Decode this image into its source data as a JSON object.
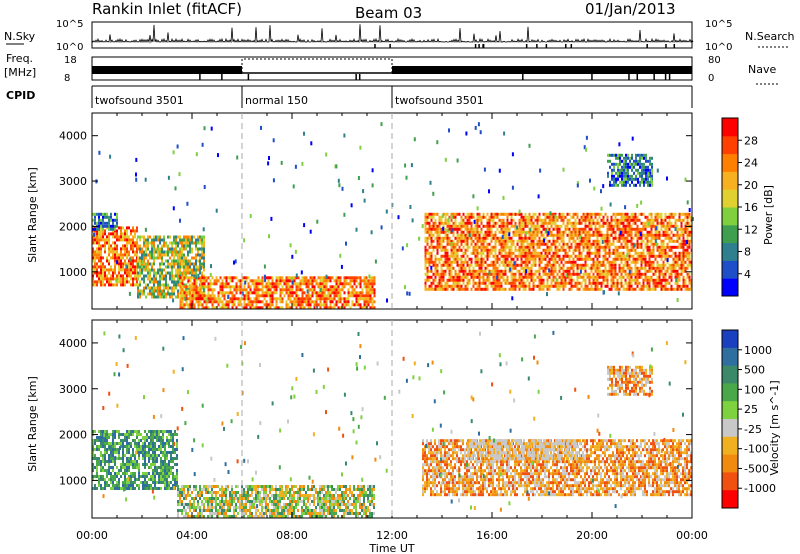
{
  "header": {
    "station": "Rankin Inlet (fitACF)",
    "beam": "Beam 03",
    "date": "01/Jan/2013"
  },
  "params": {
    "nsky_label": "N.Sky",
    "nsky_ticks": [
      "10^5",
      "10^0"
    ],
    "nsearch_label": "N.Search",
    "nsearch_ticks": [
      "10^5",
      "10^0"
    ],
    "freq_label": "Freq.",
    "freq_unit": "[MHz]",
    "freq_ticks": [
      "18",
      "8"
    ],
    "nave_label": "Nave",
    "nave_ticks": [
      "80",
      "0"
    ],
    "cpid_label": "CPID",
    "cpid_segments": [
      {
        "label": "twofsound 3501",
        "start_hour": 0,
        "end_hour": 6
      },
      {
        "label": "normal 150",
        "start_hour": 6,
        "end_hour": 12
      },
      {
        "label": "twofsound 3501",
        "start_hour": 12,
        "end_hour": 24
      }
    ]
  },
  "chart_data": [
    {
      "type": "heatmap",
      "quantity": "power",
      "ylabel": "Slant Range [km]",
      "yticks": [
        1000,
        2000,
        3000,
        4000
      ],
      "ylim": [
        180,
        4500
      ],
      "xlim": [
        0,
        24
      ],
      "xticks": [
        "00:00",
        "04:00",
        "08:00",
        "12:00",
        "16:00",
        "20:00",
        "00:00"
      ],
      "colorbar": {
        "label": "Power [dB]",
        "ticks": [
          "4",
          "8",
          "12",
          "16",
          "20",
          "24",
          "28"
        ],
        "colors": [
          "#0000ff",
          "#1f4fc8",
          "#2f7f8f",
          "#3f9f4f",
          "#7fcf3f",
          "#e0d030",
          "#f7b020",
          "#ff8000",
          "#ff4000",
          "#ff0000"
        ]
      },
      "echo_regions": [
        {
          "t0": 0.0,
          "t1": 1.8,
          "r0": 700,
          "r1": 2000,
          "level": "high"
        },
        {
          "t0": 1.8,
          "t1": 4.5,
          "r0": 450,
          "r1": 1800,
          "level": "mid"
        },
        {
          "t0": 3.5,
          "t1": 11.3,
          "r0": 200,
          "r1": 900,
          "level": "high"
        },
        {
          "t0": 13.3,
          "t1": 24.0,
          "r0": 600,
          "r1": 2300,
          "level": "high"
        },
        {
          "t0": 0.0,
          "t1": 1.0,
          "r0": 1950,
          "r1": 2300,
          "level": "low"
        },
        {
          "t0": 20.6,
          "t1": 22.4,
          "r0": 2900,
          "r1": 3600,
          "level": "low"
        }
      ]
    },
    {
      "type": "heatmap",
      "quantity": "velocity",
      "ylabel": "Slant Range [km]",
      "yticks": [
        1000,
        2000,
        3000,
        4000
      ],
      "ylim": [
        180,
        4500
      ],
      "xlim": [
        0,
        24
      ],
      "xlabel": "Time UT",
      "xticks": [
        "00:00",
        "04:00",
        "08:00",
        "12:00",
        "16:00",
        "20:00",
        "00:00"
      ],
      "colorbar": {
        "label": "Velocity [m s^-1]",
        "ticks": [
          "1000",
          "500",
          "100",
          "25",
          "-25",
          "-100",
          "-500",
          "-1000"
        ],
        "colors": [
          "#1a3fbf",
          "#2e6fa0",
          "#3a8a6a",
          "#49a84a",
          "#7fd23f",
          "#c8c8c8",
          "#f0b020",
          "#f28a10",
          "#f05010",
          "#ff0000"
        ]
      },
      "echo_regions": [
        {
          "t0": 0.0,
          "t1": 3.4,
          "r0": 800,
          "r1": 2100,
          "level": "pos"
        },
        {
          "t0": 3.4,
          "t1": 11.3,
          "r0": 200,
          "r1": 900,
          "level": "mixed"
        },
        {
          "t0": 13.2,
          "t1": 24.0,
          "r0": 700,
          "r1": 1900,
          "level": "neg"
        },
        {
          "t0": 15.0,
          "t1": 19.5,
          "r0": 1500,
          "r1": 1900,
          "level": "gray"
        },
        {
          "t0": 20.6,
          "t1": 22.4,
          "r0": 2900,
          "r1": 3500,
          "level": "neg"
        }
      ]
    }
  ]
}
